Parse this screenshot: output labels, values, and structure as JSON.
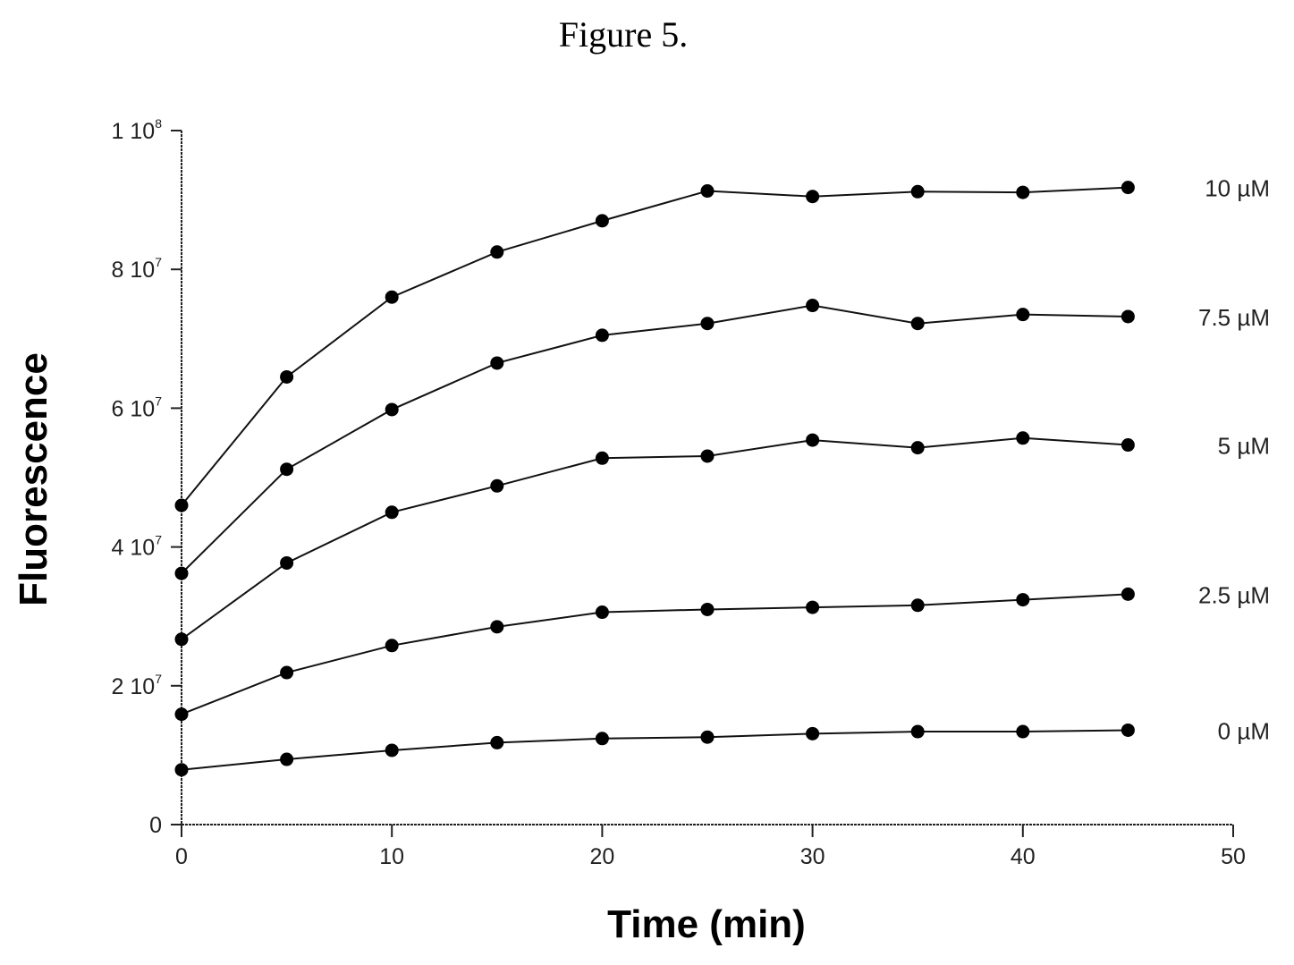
{
  "figure_title": "Figure 5.",
  "chart_data": {
    "type": "line",
    "title": "Figure 5.",
    "xlabel": "Time (min)",
    "ylabel": "Fluorescence",
    "xlim": [
      0,
      50
    ],
    "ylim": [
      0,
      100000000
    ],
    "x_ticks": [
      0,
      10,
      20,
      30,
      40,
      50
    ],
    "x_tick_labels": [
      "0",
      "10",
      "20",
      "30",
      "40",
      "50"
    ],
    "y_ticks": [
      {
        "value": 0,
        "mantissa": "0",
        "exponent": ""
      },
      {
        "value": 20000000,
        "mantissa": "2 10",
        "exponent": "7"
      },
      {
        "value": 40000000,
        "mantissa": "4 10",
        "exponent": "7"
      },
      {
        "value": 60000000,
        "mantissa": "6 10",
        "exponent": "7"
      },
      {
        "value": 80000000,
        "mantissa": "8 10",
        "exponent": "7"
      },
      {
        "value": 100000000,
        "mantissa": "1 10",
        "exponent": "8"
      }
    ],
    "grid": false,
    "legend": "none",
    "x": [
      0,
      5,
      10,
      15,
      20,
      25,
      30,
      35,
      40,
      45
    ],
    "series": [
      {
        "name": "10 µM",
        "values": [
          46000000,
          64500000,
          76000000,
          82500000,
          87000000,
          91300000,
          90500000,
          91200000,
          91100000,
          91800000
        ]
      },
      {
        "name": "7.5 µM",
        "values": [
          36200000,
          51200000,
          59800000,
          66500000,
          70500000,
          72200000,
          74800000,
          72200000,
          73500000,
          73200000
        ]
      },
      {
        "name": "5 µM",
        "values": [
          26700000,
          37700000,
          45000000,
          48800000,
          52800000,
          53100000,
          55400000,
          54300000,
          55700000,
          54700000
        ]
      },
      {
        "name": "2.5 µM",
        "values": [
          15900000,
          21900000,
          25800000,
          28500000,
          30600000,
          31000000,
          31300000,
          31600000,
          32400000,
          33200000
        ]
      },
      {
        "name": "0 µM",
        "values": [
          7900000,
          9400000,
          10700000,
          11800000,
          12400000,
          12600000,
          13100000,
          13400000,
          13400000,
          13600000
        ]
      }
    ]
  }
}
